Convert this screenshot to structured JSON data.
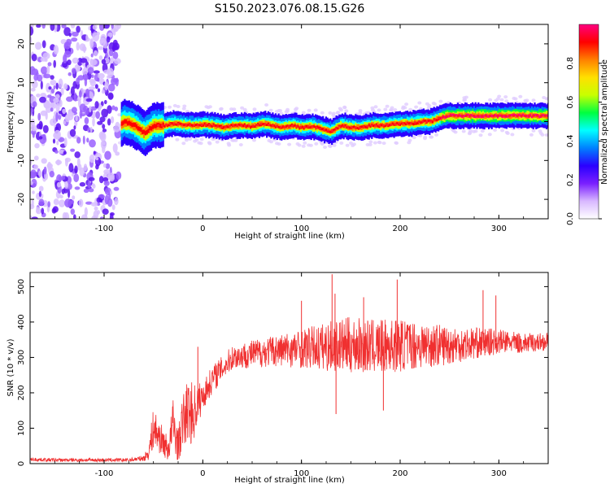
{
  "title": "S150.2023.076.08.15.G26",
  "chart_data": [
    {
      "type": "heatmap",
      "xlabel": "Height of straight line (km)",
      "ylabel": "Frequency (Hz)",
      "xlim": [
        -175,
        350
      ],
      "ylim": [
        -25,
        25
      ],
      "xticks": [
        -100,
        0,
        100,
        200,
        300
      ],
      "xtick_labels": [
        "-100",
        "0",
        "100",
        "200",
        "300"
      ],
      "yticks": [
        -20,
        -10,
        0,
        10,
        20
      ],
      "ytick_labels": [
        "-20",
        "-10",
        "0",
        "10",
        "20"
      ],
      "colorbar": {
        "label": "Normalized spectral amplitude",
        "range": [
          0,
          1
        ],
        "ticks": [
          0.0,
          0.2,
          0.4,
          0.6,
          0.8
        ],
        "tick_labels": [
          "0.0",
          "0.2",
          "0.4",
          "0.6",
          "0.8"
        ],
        "colormap": [
          "#ffffff",
          "#d8b8ff",
          "#7a1fff",
          "#2a00ff",
          "#0080ff",
          "#00ffff",
          "#00ff40",
          "#c8ff00",
          "#ffe000",
          "#ff8000",
          "#ff0000",
          "#ff0080"
        ]
      },
      "noise_region_x": [
        -175,
        -85
      ],
      "ridge": {
        "x": [
          -85,
          -80,
          -70,
          -60,
          -50,
          -40,
          -30,
          -20,
          -10,
          0,
          10,
          20,
          30,
          40,
          50,
          60,
          70,
          80,
          90,
          100,
          110,
          120,
          130,
          140,
          150,
          160,
          170,
          180,
          190,
          200,
          210,
          220,
          230,
          240,
          250,
          260,
          270,
          280,
          290,
          300,
          310,
          320,
          330,
          340,
          350
        ],
        "freq": [
          -1.0,
          0.0,
          -1.0,
          -3.0,
          -1.0,
          -1.0,
          -0.5,
          -0.8,
          -1.0,
          -0.8,
          -1.0,
          -1.5,
          -1.0,
          -1.0,
          -1.2,
          -0.5,
          -1.0,
          -1.5,
          -1.0,
          -1.5,
          -1.2,
          -2.0,
          -2.5,
          -1.0,
          -1.5,
          -1.6,
          -1.0,
          -1.0,
          -0.8,
          -0.5,
          -0.5,
          0.0,
          0.0,
          1.0,
          1.5,
          1.5,
          1.5,
          1.5,
          1.5,
          1.5,
          1.5,
          1.5,
          1.5,
          1.5,
          1.5
        ]
      }
    },
    {
      "type": "line",
      "xlabel": "Height of straight line (km)",
      "ylabel": "SNR (10 * v/v)",
      "xlim": [
        -175,
        350
      ],
      "ylim": [
        0,
        540
      ],
      "xticks": [
        -100,
        0,
        100,
        200,
        300
      ],
      "xtick_labels": [
        "-100",
        "0",
        "100",
        "200",
        "300"
      ],
      "yticks": [
        0,
        100,
        200,
        300,
        400,
        500
      ],
      "ytick_labels": [
        "0",
        "100",
        "200",
        "300",
        "400",
        "500"
      ],
      "series": [
        {
          "color": "#f03030",
          "x": [
            -175,
            -150,
            -125,
            -100,
            -75,
            -60,
            -55,
            -50,
            -45,
            -40,
            -35,
            -30,
            -25,
            -20,
            -15,
            -10,
            -5,
            0,
            10,
            20,
            30,
            50,
            75,
            100,
            125,
            150,
            175,
            200,
            225,
            250,
            275,
            300,
            325,
            350
          ],
          "values": [
            12,
            10,
            10,
            10,
            10,
            15,
            30,
            100,
            80,
            60,
            40,
            110,
            50,
            120,
            150,
            140,
            170,
            190,
            240,
            270,
            300,
            310,
            320,
            325,
            330,
            335,
            330,
            335,
            335,
            335,
            340,
            345,
            340,
            345
          ],
          "spread": [
            5,
            5,
            5,
            5,
            5,
            8,
            20,
            60,
            50,
            40,
            35,
            80,
            45,
            80,
            90,
            90,
            60,
            40,
            40,
            35,
            35,
            40,
            45,
            55,
            70,
            80,
            75,
            75,
            65,
            55,
            45,
            35,
            28,
            25
          ],
          "spikes": [
            {
              "x": 131,
              "y": 535
            },
            {
              "x": 134,
              "y": 480
            },
            {
              "x": 197,
              "y": 520
            },
            {
              "x": 284,
              "y": 490
            },
            {
              "x": 297,
              "y": 475
            },
            {
              "x": 100,
              "y": 460
            },
            {
              "x": 163,
              "y": 470
            },
            {
              "x": 135,
              "y": 140
            },
            {
              "x": 183,
              "y": 150
            },
            {
              "x": -5,
              "y": 330
            }
          ]
        }
      ]
    }
  ]
}
